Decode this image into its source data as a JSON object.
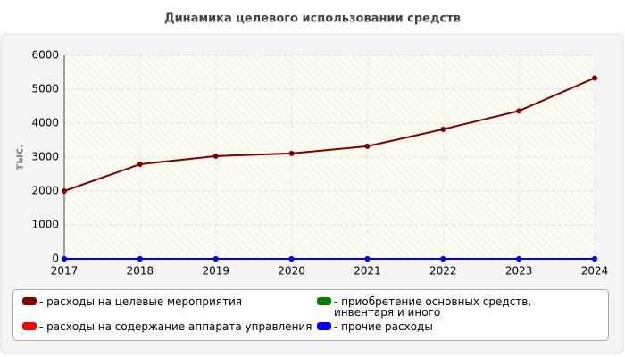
{
  "chart_data": {
    "type": "line",
    "title": "Динамика целевого использовании средств",
    "y_label": "тыс.",
    "x": [
      2017,
      2018,
      2019,
      2020,
      2021,
      2022,
      2023,
      2024
    ],
    "xlim": [
      2017,
      2024
    ],
    "xticks": [
      2017,
      2018,
      2019,
      2020,
      2021,
      2022,
      2023,
      2024
    ],
    "ylim": [
      0,
      6000
    ],
    "yticks": [
      0,
      1000,
      2000,
      3000,
      4000,
      5000,
      6000
    ],
    "grid": true,
    "series": [
      {
        "name": "- расходы на целевые мероприятия",
        "color": "#800000",
        "values": [
          2000,
          2790,
          3030,
          3110,
          3320,
          3820,
          4360,
          5330
        ]
      },
      {
        "name": "- расходы на содержание аппарата управления",
        "color": "#ff0000",
        "values": [
          0,
          0,
          0,
          0,
          0,
          0,
          0,
          0
        ]
      },
      {
        "name": "- приобретение основных средств, инвентаря и иного",
        "color": "#008000",
        "values": [
          0,
          0,
          0,
          0,
          0,
          0,
          0,
          0
        ]
      },
      {
        "name": "- прочие расходы",
        "color": "#0000ff",
        "values": [
          0,
          0,
          0,
          0,
          0,
          0,
          0,
          0
        ]
      }
    ]
  }
}
